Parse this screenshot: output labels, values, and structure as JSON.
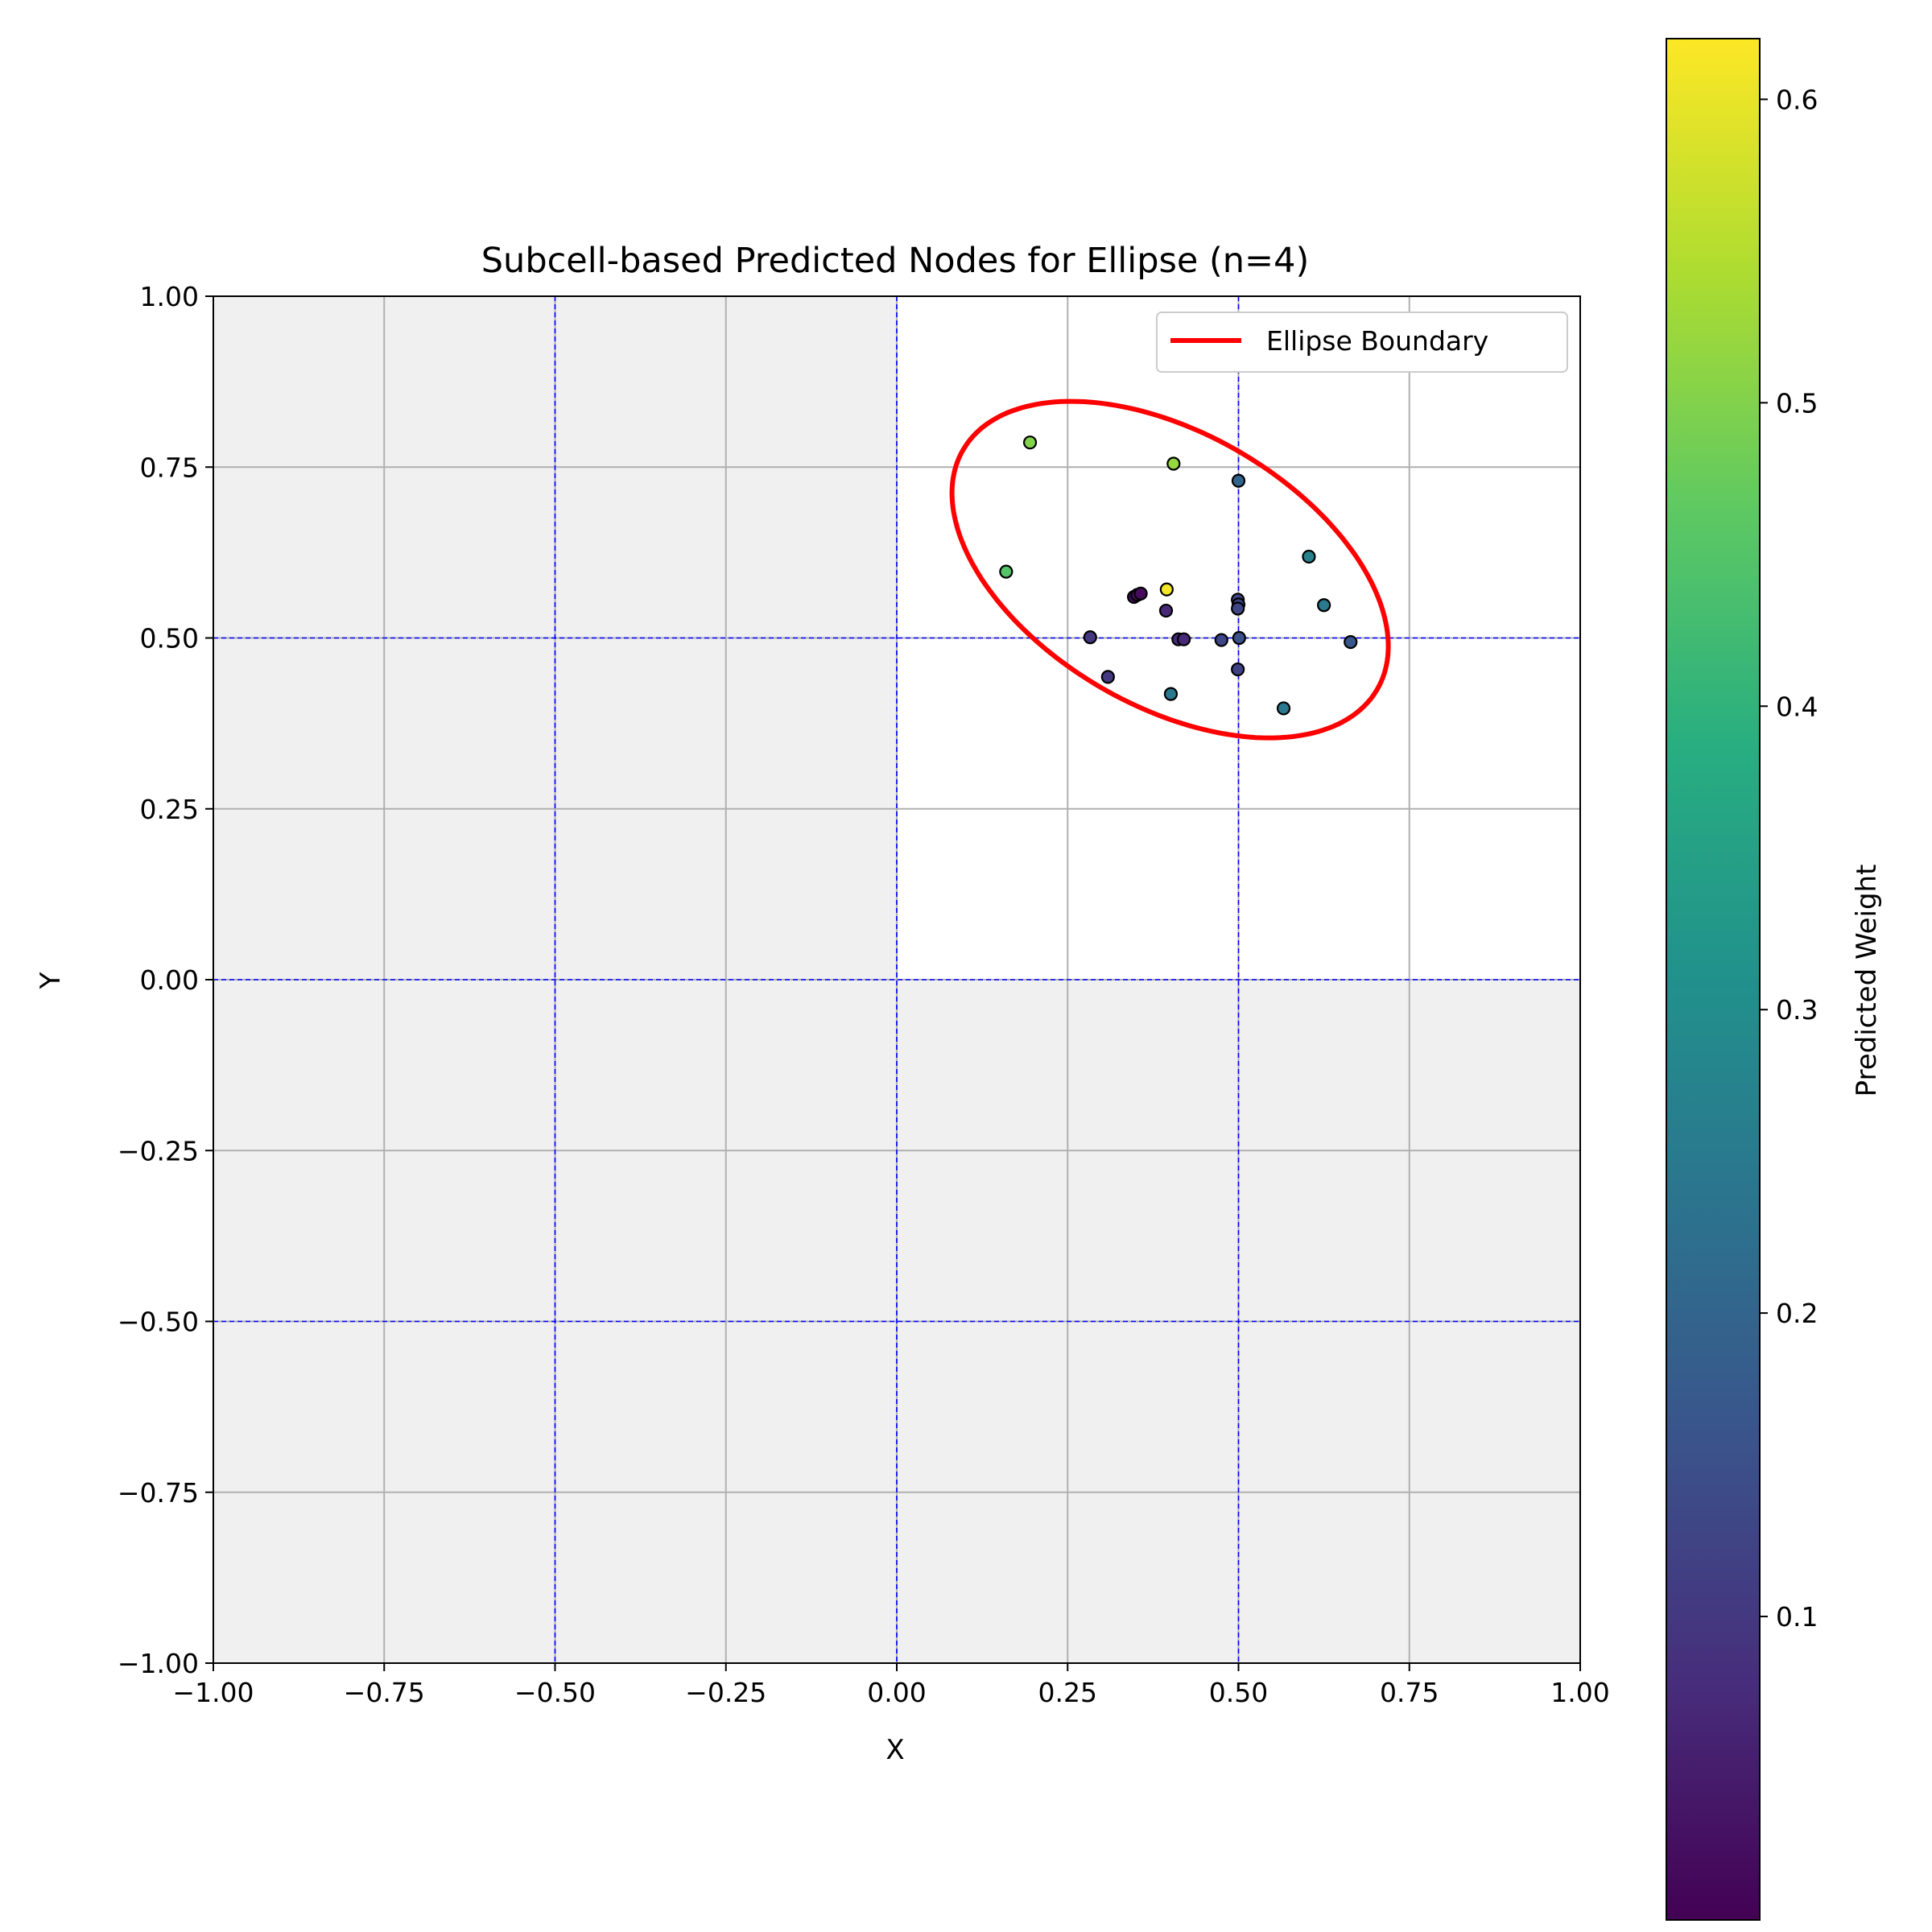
{
  "chart_data": {
    "type": "scatter",
    "title": "Subcell-based Predicted Nodes for Ellipse (n=4)",
    "xlabel": "X",
    "ylabel": "Y",
    "xlim": [
      -1,
      1
    ],
    "ylim": [
      -1,
      1
    ],
    "xticks": [
      -1.0,
      -0.75,
      -0.5,
      -0.25,
      0.0,
      0.25,
      0.5,
      0.75,
      1.0
    ],
    "yticks": [
      -1.0,
      -0.75,
      -0.5,
      -0.25,
      0.0,
      0.25,
      0.5,
      0.75,
      1.0
    ],
    "xtick_labels": [
      "−1.00",
      "−0.75",
      "−0.50",
      "−0.25",
      "0.00",
      "0.25",
      "0.50",
      "0.75",
      "1.00"
    ],
    "ytick_labels": [
      "−1.00",
      "−0.75",
      "−0.50",
      "−0.25",
      "0.00",
      "0.25",
      "0.50",
      "0.75",
      "1.00"
    ],
    "grid": true,
    "subcell_lines": [
      -0.5,
      0.0,
      0.5
    ],
    "subcell_line_color": "#0000ff",
    "active_cell": {
      "x": [
        0,
        1
      ],
      "y": [
        0,
        1
      ]
    },
    "inactive_fill": "#f0f0f0",
    "legend": {
      "placement": "top-right",
      "entries": [
        {
          "label": "Ellipse Boundary",
          "color": "#ff0000"
        }
      ]
    },
    "ellipse": {
      "center": [
        0.4,
        0.6
      ],
      "semi_major": 0.35,
      "semi_minor": 0.2,
      "angle_deg": -30,
      "color": "#ff0000"
    },
    "colorbar": {
      "label": "Predicted Weight",
      "range": [
        0.0,
        0.62
      ],
      "ticks": [
        0.1,
        0.2,
        0.3,
        0.4,
        0.5,
        0.6
      ],
      "tick_labels": [
        "0.1",
        "0.2",
        "0.3",
        "0.4",
        "0.5",
        "0.6"
      ],
      "colormap": "viridis"
    },
    "points": [
      {
        "x": 0.195,
        "y": 0.786,
        "w": 0.5
      },
      {
        "x": 0.405,
        "y": 0.755,
        "w": 0.52
      },
      {
        "x": 0.5,
        "y": 0.73,
        "w": 0.2
      },
      {
        "x": 0.16,
        "y": 0.597,
        "w": 0.45
      },
      {
        "x": 0.603,
        "y": 0.619,
        "w": 0.27
      },
      {
        "x": 0.395,
        "y": 0.571,
        "w": 0.61
      },
      {
        "x": 0.347,
        "y": 0.56,
        "w": 0.02
      },
      {
        "x": 0.352,
        "y": 0.563,
        "w": 0.02
      },
      {
        "x": 0.357,
        "y": 0.565,
        "w": 0.02
      },
      {
        "x": 0.499,
        "y": 0.556,
        "w": 0.13
      },
      {
        "x": 0.5,
        "y": 0.549,
        "w": 0.13
      },
      {
        "x": 0.499,
        "y": 0.543,
        "w": 0.13
      },
      {
        "x": 0.625,
        "y": 0.548,
        "w": 0.25
      },
      {
        "x": 0.394,
        "y": 0.54,
        "w": 0.07
      },
      {
        "x": 0.283,
        "y": 0.501,
        "w": 0.1
      },
      {
        "x": 0.412,
        "y": 0.498,
        "w": 0.07
      },
      {
        "x": 0.42,
        "y": 0.498,
        "w": 0.07
      },
      {
        "x": 0.475,
        "y": 0.497,
        "w": 0.13
      },
      {
        "x": 0.501,
        "y": 0.5,
        "w": 0.15
      },
      {
        "x": 0.664,
        "y": 0.494,
        "w": 0.17
      },
      {
        "x": 0.499,
        "y": 0.454,
        "w": 0.12
      },
      {
        "x": 0.309,
        "y": 0.443,
        "w": 0.1
      },
      {
        "x": 0.401,
        "y": 0.418,
        "w": 0.25
      },
      {
        "x": 0.566,
        "y": 0.397,
        "w": 0.25
      }
    ]
  }
}
